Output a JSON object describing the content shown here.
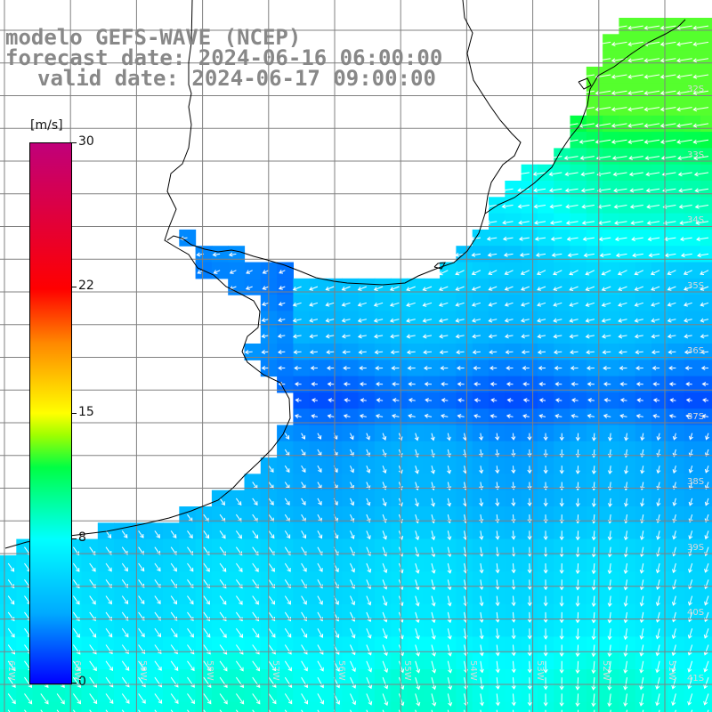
{
  "title": {
    "line1": "modelo GEFS-WAVE (NCEP)",
    "line2": "forecast date: 2024-06-16 06:00:00",
    "line3": "valid date: 2024-06-17 09:00:00"
  },
  "colorbar": {
    "unit": "[m/s]",
    "ticks": [
      {
        "label": "30",
        "value": 30
      },
      {
        "label": "22",
        "value": 22
      },
      {
        "label": "15",
        "value": 15
      },
      {
        "label": "8",
        "value": 8
      },
      {
        "label": "0",
        "value": 0
      }
    ],
    "vmin": 0,
    "vmax": 30
  },
  "lat_labels": [
    "32S",
    "33S",
    "34S",
    "35S",
    "36S",
    "37S",
    "38S",
    "39S",
    "40S",
    "41S"
  ],
  "lon_labels": [
    "61W",
    "60W",
    "59W",
    "58W",
    "57W",
    "56W",
    "55W",
    "54W",
    "53W",
    "52W",
    "51W"
  ],
  "colors": {
    "land": "#ffffff",
    "coast": "#000000",
    "grid": "#808080",
    "arrows": "#ffffff",
    "title": "#888888"
  }
}
